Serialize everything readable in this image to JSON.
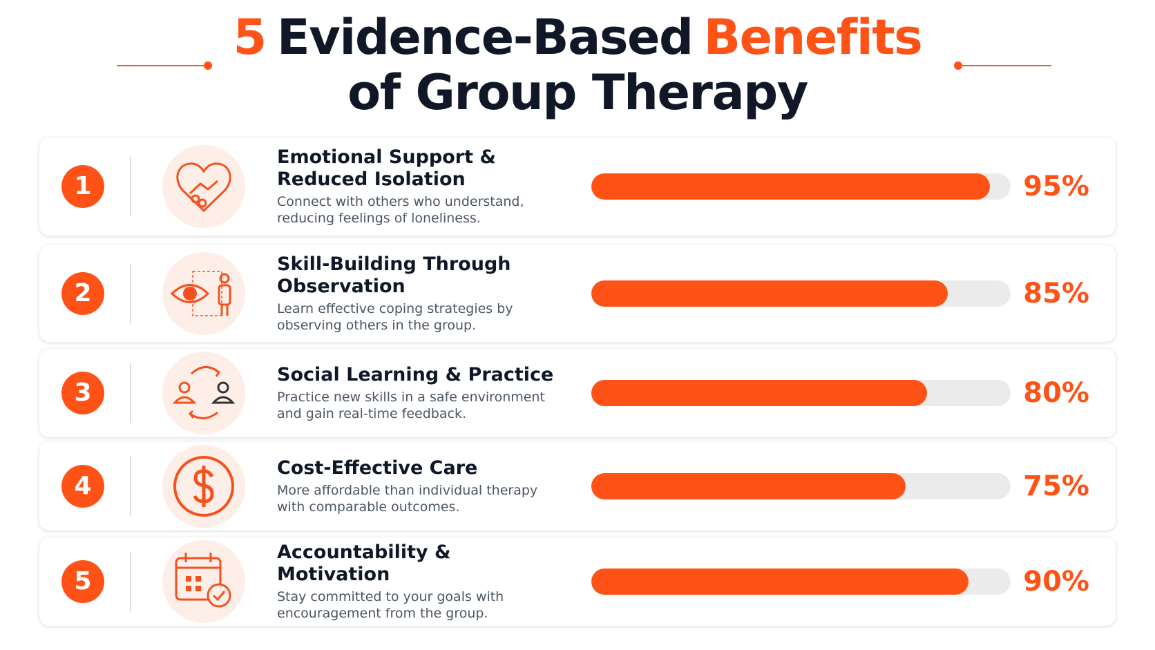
{
  "chart_data": {
    "type": "bar",
    "title_parts": [
      {
        "text": "5",
        "color": "#ff5216"
      },
      {
        "text": "Evidence-Based",
        "color": "#101828"
      },
      {
        "text": "Benefits",
        "color": "#ff5216"
      },
      {
        "text": "of Group Therapy",
        "color": "#101828"
      }
    ],
    "numbers": [
      "1",
      "2",
      "3",
      "4",
      "5"
    ],
    "categories": [
      "Emotional Support & Reduced Isolation",
      "Skill-Building Through Observation",
      "Social Learning & Practice",
      "Cost-Effective Care",
      "Accountability & Motivation"
    ],
    "descriptions": [
      "Connect with others who understand, reducing feelings of loneliness.",
      "Learn effective coping strategies by observing others in the group.",
      "Practice new skills in a safe environment and gain real-time feedback.",
      "More affordable than individual therapy with comparable outcomes.",
      "Stay committed to your goals with encouragement from the group."
    ],
    "values": [
      95,
      85,
      80,
      75,
      90
    ],
    "value_labels": [
      "95%",
      "85%",
      "80%",
      "75%",
      "90%"
    ],
    "xlim": [
      0,
      100
    ],
    "color": "#ff5216",
    "track_color": "#ebebeb"
  }
}
